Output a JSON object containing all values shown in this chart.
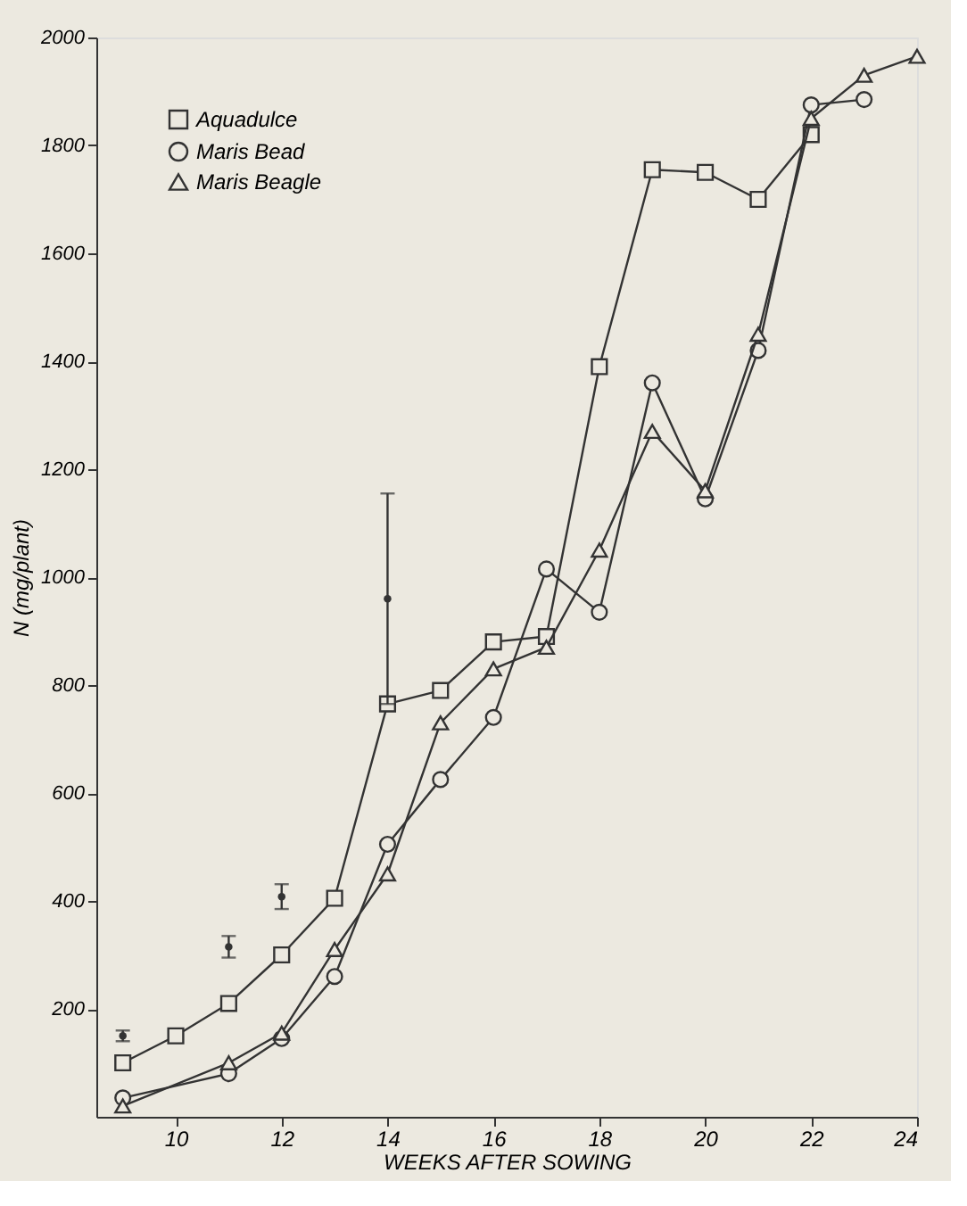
{
  "chart_data": {
    "type": "line",
    "xlabel": "WEEKS     AFTER     SOWING",
    "ylabel": "N   (mg/plant)",
    "xlim": [
      8.5,
      24
    ],
    "xticks": [
      10,
      12,
      14,
      16,
      18,
      20,
      22,
      24
    ],
    "ylim": [
      0,
      2000
    ],
    "yticks": [
      200,
      400,
      600,
      800,
      1000,
      1200,
      1400,
      1600,
      1800,
      2000
    ],
    "grid": false,
    "legend": "top left",
    "line_style": "solid",
    "series": [
      {
        "name": "Aquadulce",
        "color": "#333333",
        "marker": "square",
        "x": [
          9,
          10,
          11,
          12,
          13,
          14,
          15,
          16,
          17,
          18,
          19,
          20,
          21,
          22
        ],
        "values": [
          100,
          150,
          210,
          300,
          405,
          765,
          790,
          880,
          890,
          1390,
          1755,
          1750,
          1700,
          1820
        ]
      },
      {
        "name": "Maris Bead",
        "color": "#333333",
        "marker": "circle",
        "x": [
          9,
          11,
          12,
          13,
          14,
          15,
          16,
          17,
          18,
          19,
          20,
          21,
          22,
          23
        ],
        "values": [
          35,
          80,
          145,
          260,
          505,
          625,
          740,
          1015,
          935,
          1360,
          1145,
          1420,
          1875,
          1885
        ]
      },
      {
        "name": "Maris Beagle",
        "color": "#333333",
        "marker": "triangle",
        "x": [
          9,
          11,
          12,
          13,
          14,
          15,
          16,
          17,
          18,
          19,
          20,
          21,
          22,
          23,
          24
        ],
        "values": [
          20,
          100,
          155,
          310,
          450,
          730,
          830,
          870,
          1050,
          1270,
          1160,
          1450,
          1850,
          1930,
          1965
        ]
      },
      {
        "type": "scatter",
        "color": "#333333",
        "marker": "circle",
        "x": [
          9,
          11,
          12,
          14
        ],
        "values": [
          150,
          315,
          408,
          960
        ],
        "errors": [
          10,
          20,
          23,
          195
        ]
      }
    ]
  }
}
